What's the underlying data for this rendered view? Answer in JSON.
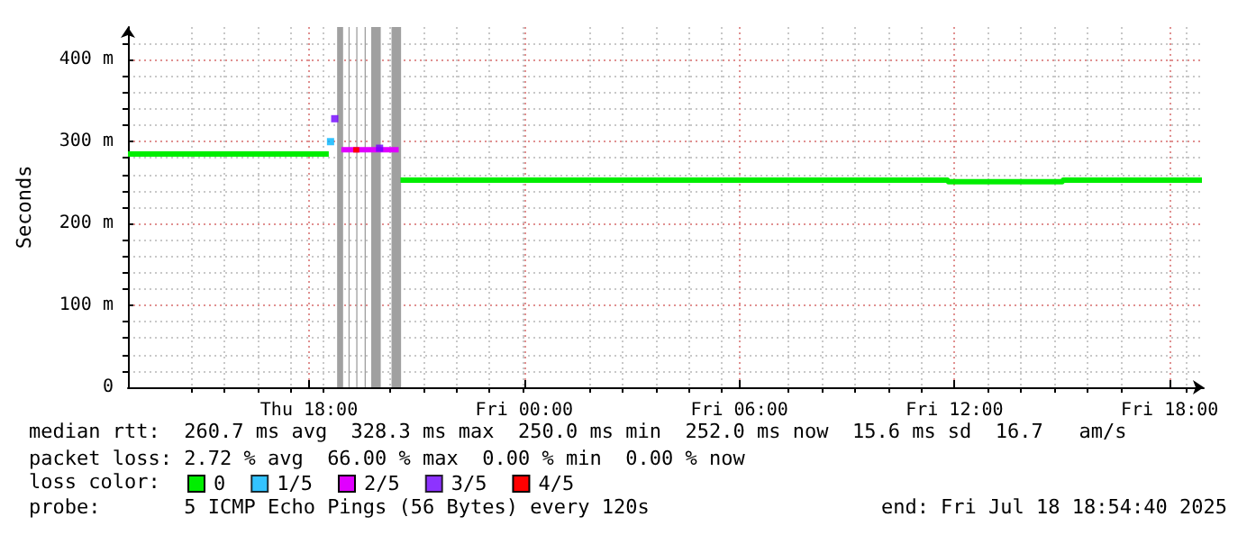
{
  "chart_data": {
    "type": "line",
    "ylabel": "Seconds",
    "legend_title": "loss color:",
    "legend": "bottom",
    "grid": true,
    "marker": "none",
    "line_style": "solid",
    "xlim": [
      "2025-07-17T12:57",
      "2025-07-18T18:57"
    ],
    "xticks": [
      {
        "value": "2025-07-17T18:00",
        "label": "Thu 18:00"
      },
      {
        "value": "2025-07-18T00:00",
        "label": "Fri 00:00"
      },
      {
        "value": "2025-07-18T06:00",
        "label": "Fri 06:00"
      },
      {
        "value": "2025-07-18T12:00",
        "label": "Fri 12:00"
      },
      {
        "value": "2025-07-18T18:00",
        "label": "Fri 18:00"
      }
    ],
    "ylim": [
      0,
      440
    ],
    "yticks": [
      0,
      {
        "value": 100,
        "label": "100 m"
      },
      {
        "value": 200,
        "label": "200 m"
      },
      {
        "value": 300,
        "label": "300 m"
      },
      {
        "value": 400,
        "label": "400 m"
      }
    ],
    "series": [
      {
        "name": "0",
        "color": "#00ee00",
        "x": [
          "2025-07-17T12:57",
          "2025-07-17T18:33",
          "2025-07-17T18:36",
          "2025-07-17T20:33",
          "2025-07-18T11:48",
          "2025-07-18T11:50",
          "2025-07-18T15:00",
          "2025-07-18T15:02",
          "2025-07-18T18:54"
        ],
        "values": [
          285,
          285,
          null,
          253,
          253,
          251,
          251,
          253,
          253
        ]
      },
      {
        "name": "1/5",
        "type": "scatter",
        "marker": "square",
        "color": "#00b4ff",
        "x": [
          "2025-07-17T18:36"
        ],
        "values": [
          300
        ]
      },
      {
        "name": "2/5",
        "color": "#e000ff",
        "x": [
          "2025-07-17T18:54",
          "2025-07-17T20:30"
        ],
        "values": [
          290,
          290
        ]
      },
      {
        "name": "3/5",
        "type": "scatter",
        "marker": "square",
        "color": "#7000ff",
        "x": [
          "2025-07-17T18:43",
          "2025-07-17T19:58"
        ],
        "values": [
          328,
          292
        ]
      },
      {
        "name": "4/5",
        "color": "#ff0000",
        "x": [
          "2025-07-17T19:14",
          "2025-07-17T19:24"
        ],
        "values": [
          290,
          290
        ]
      }
    ],
    "bands": [
      {
        "axis": "x",
        "from": "2025-07-17T18:47",
        "to": "2025-07-17T18:57",
        "color": "#a0a0a0"
      },
      {
        "axis": "x",
        "from": "2025-07-17T19:06",
        "to": "2025-07-17T19:08",
        "color": "#a0a0a0"
      },
      {
        "axis": "x",
        "from": "2025-07-17T19:19",
        "to": "2025-07-17T19:21",
        "color": "#a0a0a0"
      },
      {
        "axis": "x",
        "from": "2025-07-17T19:33",
        "to": "2025-07-17T19:35",
        "color": "#a0a0a0"
      },
      {
        "axis": "x",
        "from": "2025-07-17T19:44",
        "to": "2025-07-17T20:00",
        "color": "#a0a0a0"
      },
      {
        "axis": "x",
        "from": "2025-07-17T20:18",
        "to": "2025-07-17T20:34",
        "color": "#a0a0a0"
      }
    ],
    "annotations": [
      "median rtt:  260.7 ms avg  328.3 ms max  250.0 ms min  252.0 ms now  15.6 ms sd  16.7   am/s",
      "packet loss: 2.72 % avg  66.00 % max  0.00 % min  0.00 % now",
      "probe:       5 ICMP Echo Pings (56 Bytes) every 120s",
      "end: Fri Jul 18 18:54:40 2025"
    ]
  }
}
